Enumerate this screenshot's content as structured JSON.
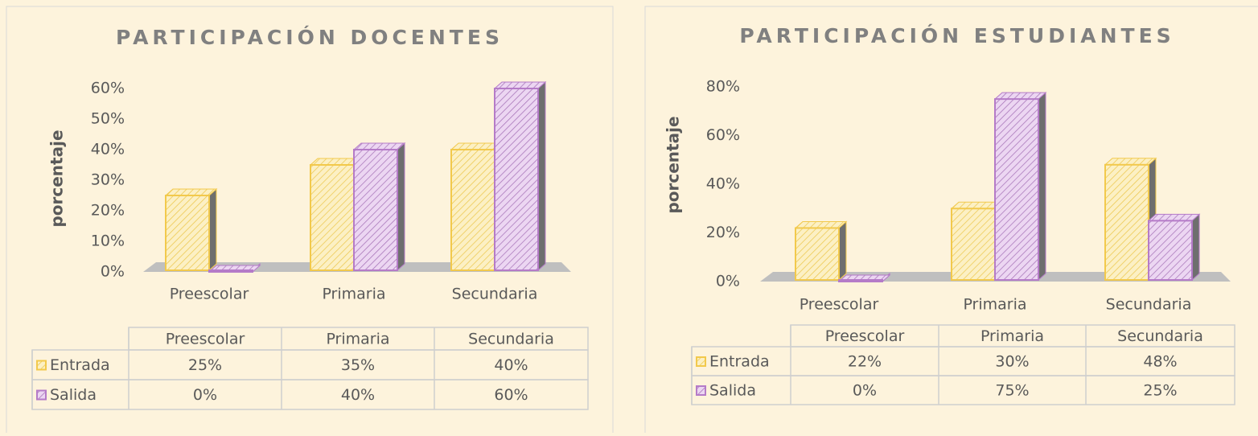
{
  "chart_data": [
    {
      "type": "bar3d",
      "title": "PARTICIPACIÓN DOCENTES",
      "y_label": "porcentaje",
      "categories": [
        "Preescolar",
        "Primaria",
        "Secundaria"
      ],
      "series": [
        {
          "name": "Entrada",
          "color": "#f2c94c",
          "values": [
            25,
            35,
            40
          ],
          "value_labels": [
            "25%",
            "35%",
            "40%"
          ]
        },
        {
          "name": "Salida",
          "color": "#b57bc8",
          "values": [
            0,
            40,
            60
          ],
          "value_labels": [
            "0%",
            "40%",
            "60%"
          ]
        }
      ],
      "ylim": [
        0,
        60
      ],
      "yticks": [
        {
          "value": 0,
          "label": "0%"
        },
        {
          "value": 10,
          "label": "10%"
        },
        {
          "value": 20,
          "label": "20%"
        },
        {
          "value": 30,
          "label": "30%"
        },
        {
          "value": 40,
          "label": "40%"
        },
        {
          "value": 50,
          "label": "50%"
        },
        {
          "value": 60,
          "label": "60%"
        }
      ]
    },
    {
      "type": "bar3d",
      "title": "PARTICIPACIÓN ESTUDIANTES",
      "y_label": "porcentaje",
      "categories": [
        "Preescolar",
        "Primaria",
        "Secundaria"
      ],
      "series": [
        {
          "name": "Entrada",
          "color": "#f2c94c",
          "values": [
            22,
            30,
            48
          ],
          "value_labels": [
            "22%",
            "30%",
            "48%"
          ]
        },
        {
          "name": "Salida",
          "color": "#b57bc8",
          "values": [
            0,
            75,
            25
          ],
          "value_labels": [
            "0%",
            "75%",
            "25%"
          ]
        }
      ],
      "ylim": [
        0,
        80
      ],
      "yticks": [
        {
          "value": 0,
          "label": "0%"
        },
        {
          "value": 20,
          "label": "20%"
        },
        {
          "value": 40,
          "label": "40%"
        },
        {
          "value": 60,
          "label": "60%"
        },
        {
          "value": 80,
          "label": "80%"
        }
      ]
    }
  ]
}
